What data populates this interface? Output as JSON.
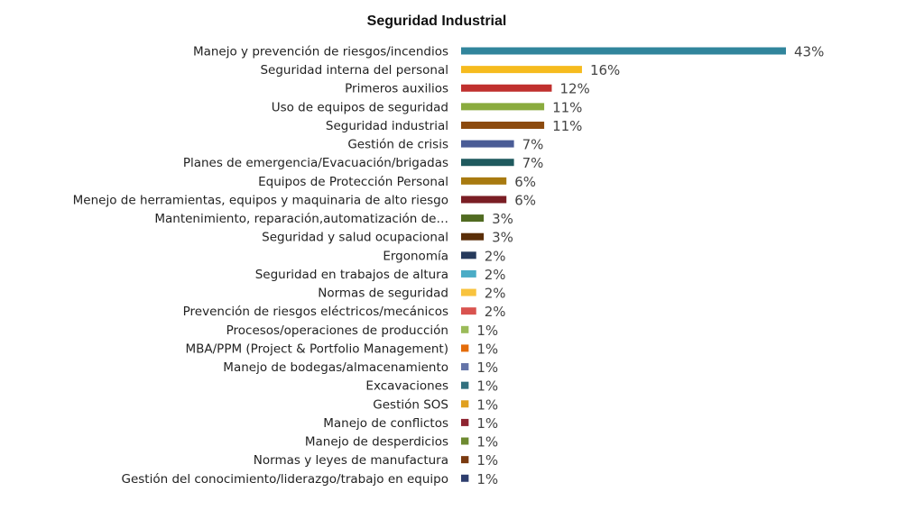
{
  "chart_data": {
    "type": "bar",
    "orientation": "horizontal",
    "title": "Seguridad Industrial",
    "xlabel": "",
    "ylabel": "",
    "xlim": [
      0,
      43
    ],
    "grid": false,
    "legend": "none",
    "categories": [
      "Manejo y prevención de riesgos/incendios",
      "Seguridad interna del personal",
      "Primeros auxilios",
      "Uso de equipos de seguridad",
      "Seguridad industrial",
      "Gestión de crisis",
      "Planes de emergencia/Evacuación/brigadas",
      "Equipos de Protección Personal",
      "Menejo de herramientas, equipos y maquinaria de alto riesgo",
      "Mantenimiento, reparación,automatización de…",
      "Seguridad y salud ocupacional",
      "Ergonomía",
      "Seguridad en trabajos de altura",
      "Normas de seguridad",
      "Prevención de riesgos eléctricos/mecánicos",
      "Procesos/operaciones de producción",
      "MBA/PPM (Project & Portfolio Management)",
      "Manejo de bodegas/almacenamiento",
      "Excavaciones",
      "Gestión SOS",
      "Manejo de conflictos",
      "Manejo de desperdicios",
      "Normas y leyes de manufactura",
      "Gestión del conocimiento/liderazgo/trabajo en equipo"
    ],
    "values": [
      43,
      16,
      12,
      11,
      11,
      7,
      7,
      6,
      6,
      3,
      3,
      2,
      2,
      2,
      2,
      1,
      1,
      1,
      1,
      1,
      1,
      1,
      1,
      1
    ],
    "data_labels": [
      "43%",
      "16%",
      "12%",
      "11%",
      "11%",
      "7%",
      "7%",
      "6%",
      "6%",
      "3%",
      "3%",
      "2%",
      "2%",
      "2%",
      "2%",
      "1%",
      "1%",
      "1%",
      "1%",
      "1%",
      "1%",
      "1%",
      "1%",
      "1%"
    ],
    "colors": [
      "#31859C",
      "#F6BB1E",
      "#C0302E",
      "#8AAB3E",
      "#8C4A0E",
      "#4A5C96",
      "#1F5A5E",
      "#A87A10",
      "#7A1E24",
      "#516B22",
      "#5A2E08",
      "#263A5C",
      "#4BACC6",
      "#F8C33E",
      "#D9534F",
      "#9BBB59",
      "#E46C0A",
      "#6474A8",
      "#31707E",
      "#E0A020",
      "#8E2430",
      "#6E8A30",
      "#7A3A10",
      "#2E3E6E"
    ]
  }
}
